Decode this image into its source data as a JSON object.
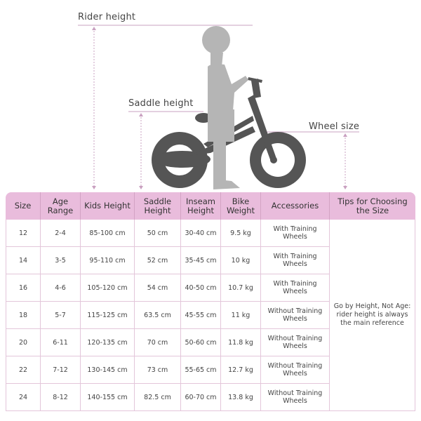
{
  "labels": {
    "rider_height": "Rider height",
    "saddle_height": "Saddle height",
    "wheel_size": "Wheel size"
  },
  "colors": {
    "header_bg": "#e9bcdc",
    "guide_line": "#c9a0c0",
    "bike": "#555555",
    "child": "#b5b5b5"
  },
  "table": {
    "headers": [
      "Size",
      "Age Range",
      "Kids Height",
      "Saddle Height",
      "Inseam Height",
      "Bike Weight",
      "Accessories",
      "Tips for Choosing the Size"
    ],
    "rows": [
      [
        "12",
        "2-4",
        "85-100 cm",
        "50 cm",
        "30-40 cm",
        "9.5 kg",
        "With Training Wheels"
      ],
      [
        "14",
        "3-5",
        "95-110 cm",
        "52 cm",
        "35-45 cm",
        "10 kg",
        "With Training Wheels"
      ],
      [
        "16",
        "4-6",
        "105-120 cm",
        "54 cm",
        "40-50 cm",
        "10.7 kg",
        "With Training Wheels"
      ],
      [
        "18",
        "5-7",
        "115-125 cm",
        "63.5 cm",
        "45-55 cm",
        "11 kg",
        "Without Training Wheels"
      ],
      [
        "20",
        "6-11",
        "120-135 cm",
        "70 cm",
        "50-60 cm",
        "11.8 kg",
        "Without Training Wheels"
      ],
      [
        "22",
        "7-12",
        "130-145 cm",
        "73 cm",
        "55-65 cm",
        "12.7 kg",
        "Without Training Wheels"
      ],
      [
        "24",
        "8-12",
        "140-155 cm",
        "82.5 cm",
        "60-70 cm",
        "13.8 kg",
        "Without Training Wheels"
      ]
    ],
    "tip": "Go by Height, Not Age: rider height is always the main reference"
  }
}
